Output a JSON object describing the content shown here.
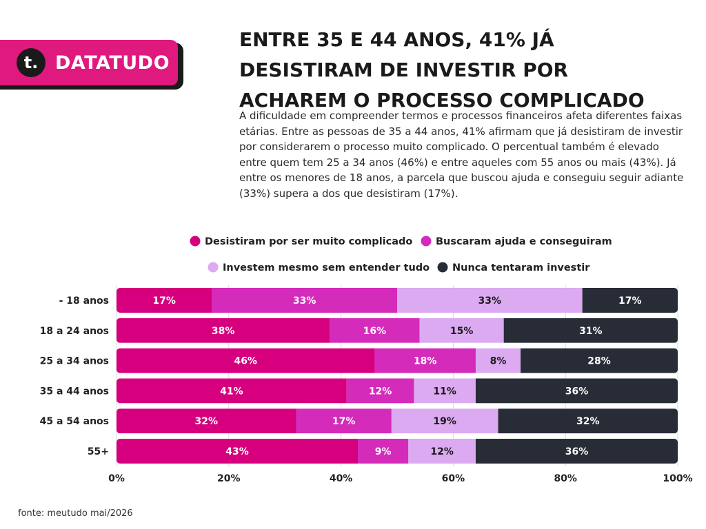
{
  "brand": {
    "logo_letter": "t.",
    "name": "DATATUDO"
  },
  "headline": "ENTRE 35 E 44 ANOS, 41% JÁ DESISTIRAM DE INVESTIR POR ACHAREM O PROCESSO COMPLICADO",
  "description": "A dificuldade em compreender termos e processos financeiros afeta diferentes faixas etárias. Entre as pessoas de 35 a 44 anos, 41% afirmam que já desistiram de investir por considerarem o processo muito complicado. O percentual também é elevado entre quem tem 25 a 34 anos (46%) e entre aqueles com 55 anos ou mais (43%). Já entre os menores de 18 anos, a parcela que buscou ajuda e conseguiu seguir adiante (33%) supera a dos que desistiram (17%).",
  "source": "fonte: meutudo mai/2026",
  "chart_data": {
    "type": "bar",
    "orientation": "horizontal",
    "stacked": true,
    "categories": [
      "- 18 anos",
      "18 a 24 anos",
      "25 a 34 anos",
      "35 a 44 anos",
      "45 a 54 anos",
      "55+"
    ],
    "series": [
      {
        "name": "Desistiram por ser muito complicado",
        "color": "#d6007e",
        "values": [
          17,
          38,
          46,
          41,
          32,
          43
        ]
      },
      {
        "name": "Buscaram ajuda e conseguiram",
        "color": "#d42bbb",
        "values": [
          33,
          16,
          18,
          12,
          17,
          9
        ]
      },
      {
        "name": "Investem mesmo sem entender tudo",
        "color": "#dcaaf0",
        "values": [
          33,
          15,
          8,
          11,
          19,
          12
        ]
      },
      {
        "name": "Nunca tentaram investir",
        "color": "#272c36",
        "values": [
          17,
          31,
          28,
          36,
          32,
          36
        ]
      }
    ],
    "data_labels": [
      [
        "17%",
        "33%",
        "33%",
        "17%"
      ],
      [
        "38%",
        "16%",
        "15%",
        "31%"
      ],
      [
        "46%",
        "18%",
        "8%",
        "28%"
      ],
      [
        "41%",
        "12%",
        "11%",
        "36%"
      ],
      [
        "32%",
        "17%",
        "19%",
        "32%"
      ],
      [
        "43%",
        "9%",
        "12%",
        "36%"
      ]
    ],
    "label_colors": [
      "#ffffff",
      "#ffffff",
      "#1a1a1a",
      "#ffffff"
    ],
    "x_ticks": [
      "0%",
      "20%",
      "40%",
      "60%",
      "80%",
      "100%"
    ],
    "xlim": [
      0,
      100
    ],
    "grid": "vertical",
    "legend_position": "top"
  }
}
